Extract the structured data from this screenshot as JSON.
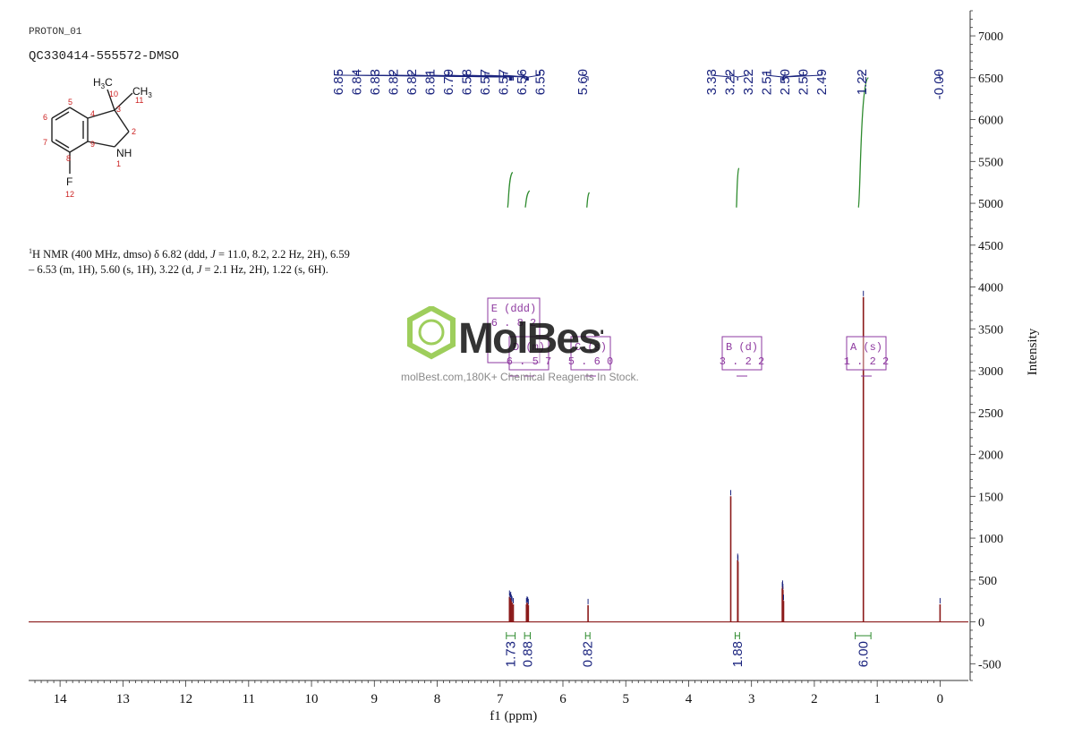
{
  "header": {
    "file_id": "PROTON_01",
    "sample_id": "QC330414-555572-DMSO"
  },
  "description": {
    "isotope_sup": "1",
    "p1": "H NMR (400 MHz, dmso) δ 6.82 (ddd, ",
    "j1": "J",
    "p2": " = 11.0, 8.2, 2.2 Hz, 2H), 6.59 – 6.53 (m, 1H), 5.60 (s, 1H), 3.22 (d, ",
    "j2": "J",
    "p3": " = 2.1 Hz, 2H), 1.22 (s, 6H)."
  },
  "watermark": {
    "brand": "MolBest",
    "tagline": "molBest.com,180K+ Chemical Reagents In Stock."
  },
  "structure": {
    "atoms": {
      "c3_label": "3",
      "c2_label": "2",
      "n1_label": "1",
      "c4_label": "4",
      "c5_label": "5",
      "c6_label": "6",
      "c7_label": "7",
      "c8_label": "8",
      "c9_label": "9",
      "c10_label": "10",
      "c11_label": "11",
      "f12_label": "12",
      "nh": "NH",
      "f": "F",
      "ch3_right": "CH3",
      "h3c_left": "H3C"
    }
  },
  "colors": {
    "spectrum": "#8b1a1a",
    "peak_label": "#1a237e",
    "integral": "#2e8b2e",
    "annotation": "#8e3aa0",
    "axis": "#333333",
    "atom_number": "#cc2222",
    "brand_green": "#8dc63f"
  },
  "chart_data": {
    "type": "line",
    "xlabel": "f1 (ppm)",
    "ylabel": "Intensity",
    "x_axis": {
      "min": -0.45,
      "max": 14.5,
      "reversed": true,
      "ticks": [
        "14",
        "13",
        "12",
        "11",
        "10",
        "9",
        "8",
        "7",
        "6",
        "5",
        "4",
        "3",
        "2",
        "1",
        "0"
      ]
    },
    "y_axis": {
      "min": -700,
      "max": 7300,
      "position": "right",
      "ticks": [
        "7000",
        "6500",
        "6000",
        "5500",
        "5000",
        "4500",
        "4000",
        "3500",
        "3000",
        "2500",
        "2000",
        "1500",
        "1000",
        "500",
        "0",
        "-500"
      ]
    },
    "peaks": [
      {
        "ppm": 6.85,
        "height": 300
      },
      {
        "ppm": 6.84,
        "height": 270
      },
      {
        "ppm": 6.83,
        "height": 285
      },
      {
        "ppm": 6.82,
        "height": 250
      },
      {
        "ppm": 6.81,
        "height": 230
      },
      {
        "ppm": 6.79,
        "height": 210
      },
      {
        "ppm": 6.58,
        "height": 210
      },
      {
        "ppm": 6.57,
        "height": 230
      },
      {
        "ppm": 6.56,
        "height": 220
      },
      {
        "ppm": 6.55,
        "height": 200
      },
      {
        "ppm": 5.6,
        "height": 200
      },
      {
        "ppm": 3.33,
        "height": 1500
      },
      {
        "ppm": 3.22,
        "height": 740
      },
      {
        "ppm": 3.215,
        "height": 720
      },
      {
        "ppm": 2.51,
        "height": 400
      },
      {
        "ppm": 2.505,
        "height": 420
      },
      {
        "ppm": 2.5,
        "height": 380
      },
      {
        "ppm": 2.49,
        "height": 250
      },
      {
        "ppm": 1.22,
        "height": 3880
      },
      {
        "ppm": 0.0,
        "height": 210
      }
    ],
    "peak_labels": {
      "group1": [
        "6.85",
        "6.84",
        "6.83",
        "6.82",
        "6.82",
        "6.81",
        "6.79",
        "6.58",
        "6.57",
        "6.57",
        "6.56",
        "6.55"
      ],
      "group2": [
        "5.60"
      ],
      "group3": [
        "3.33",
        "3.22",
        "3.22",
        "2.51",
        "2.50",
        "2.50",
        "2.49"
      ],
      "group4": [
        "1.22"
      ],
      "group5": [
        "-0.00"
      ]
    },
    "integrals": [
      {
        "from": 6.9,
        "to": 6.76,
        "value": "1.73"
      },
      {
        "from": 6.61,
        "to": 6.52,
        "value": "0.88"
      },
      {
        "from": 5.64,
        "to": 5.57,
        "value": "0.82"
      },
      {
        "from": 3.26,
        "to": 3.19,
        "value": "1.88"
      },
      {
        "from": 1.35,
        "to": 1.1,
        "value": "6.00"
      }
    ],
    "integral_curves": [
      {
        "from": 6.88,
        "to": 6.8,
        "y_base": 4950,
        "y_top": 5370
      },
      {
        "from": 6.6,
        "to": 6.53,
        "y_base": 4950,
        "y_top": 5150
      },
      {
        "from": 5.62,
        "to": 5.58,
        "y_base": 4950,
        "y_top": 5130
      },
      {
        "from": 3.24,
        "to": 3.2,
        "y_base": 4950,
        "y_top": 5420
      },
      {
        "from": 1.3,
        "to": 1.14,
        "y_base": 4950,
        "y_top": 6500
      }
    ],
    "multiplets": [
      {
        "letter": "E",
        "type": "ddd",
        "shift": "6.82"
      },
      {
        "letter": "D",
        "type": "m",
        "shift": "6.57"
      },
      {
        "letter": "C",
        "type": "s",
        "shift": "5.60"
      },
      {
        "letter": "B",
        "type": "d",
        "shift": "3.22"
      },
      {
        "letter": "A",
        "type": "s",
        "shift": "1.22"
      }
    ]
  }
}
